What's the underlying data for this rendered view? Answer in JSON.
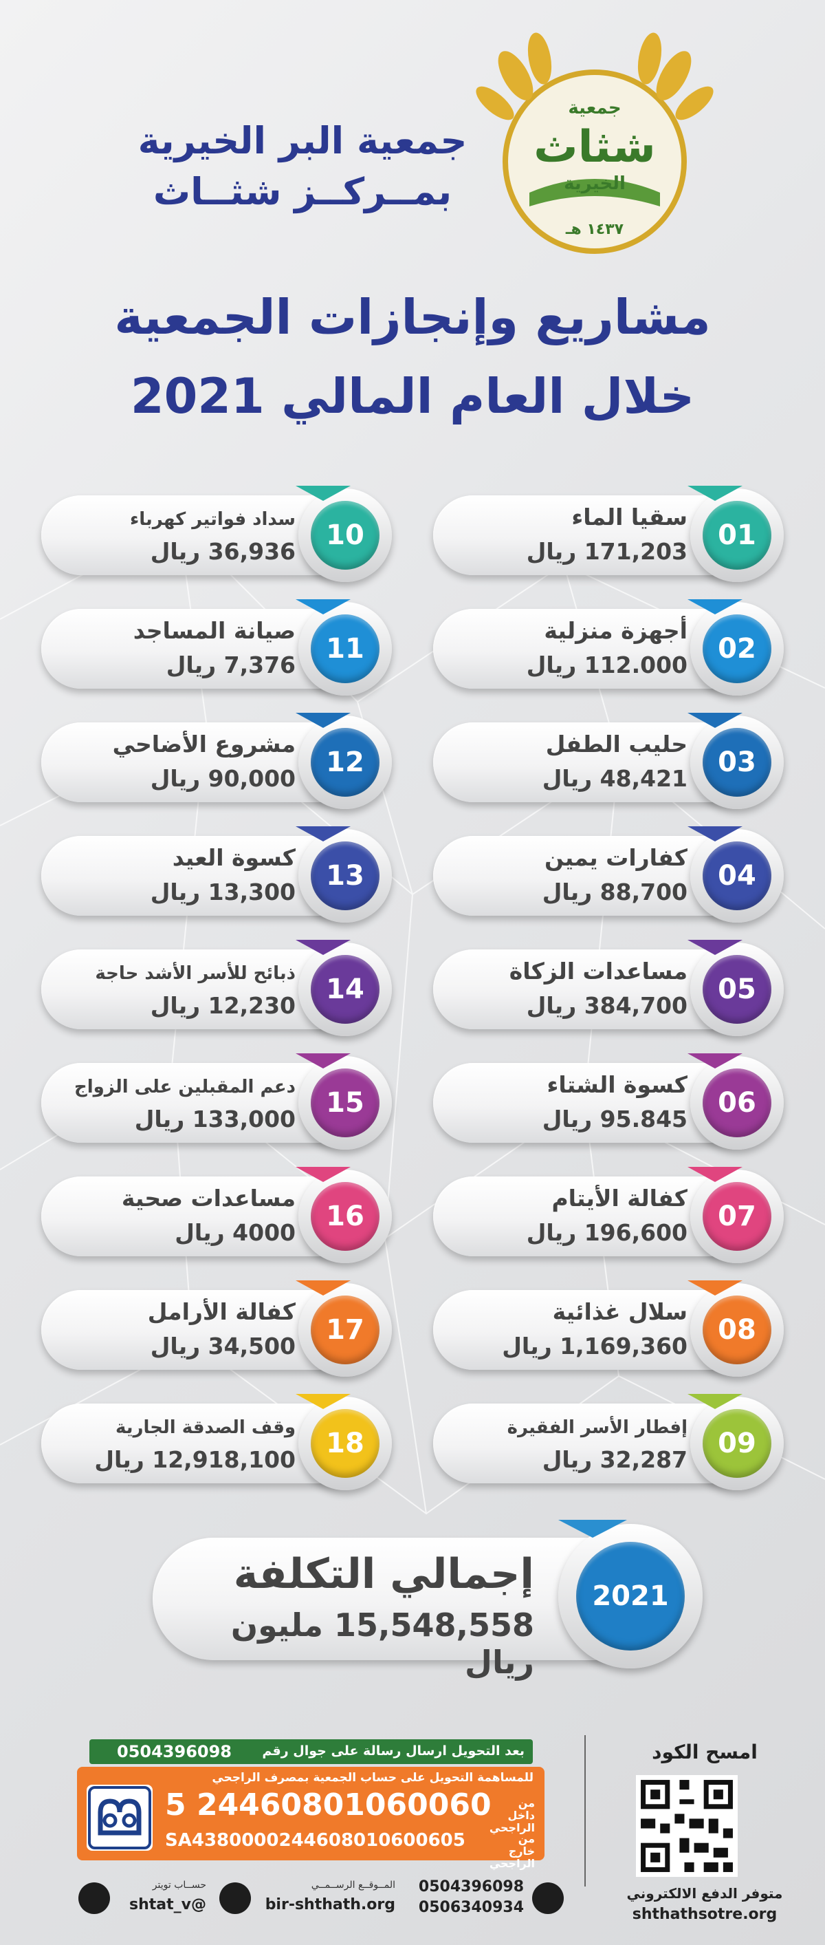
{
  "header": {
    "org_name_line1": "جمعية البر الخيرية",
    "org_name_line2": "بمــركــز شثــاث",
    "logo": {
      "text_top": "جمعية",
      "text_main": "شثاث",
      "text_bottom": "الخيرية",
      "year": "١٤٣٧ هـ"
    }
  },
  "title": {
    "line1": "مشاريع وإنجازات الجمعية",
    "line2": "خلال العام المالي 2021"
  },
  "items": [
    {
      "num": "01",
      "title": "سقيا الماء",
      "value": "171,203 ريال",
      "color": "#2bb3a0"
    },
    {
      "num": "02",
      "title": "أجهزة منزلية",
      "value": "112.000 ريال",
      "color": "#1f8fd6"
    },
    {
      "num": "03",
      "title": "حليب الطفل",
      "value": "48,421 ريال",
      "color": "#1e6fb8"
    },
    {
      "num": "04",
      "title": "كفارات يمين",
      "value": "88,700 ريال",
      "color": "#3b4fa8"
    },
    {
      "num": "05",
      "title": "مساعدات الزكاة",
      "value": "384,700 ريال",
      "color": "#6a3a9a"
    },
    {
      "num": "06",
      "title": "كسوة الشتاء",
      "value": "95.845 ريال",
      "color": "#9a3a96"
    },
    {
      "num": "07",
      "title": "كفالة الأيتام",
      "value": "196,600 ريال",
      "color": "#e0457f"
    },
    {
      "num": "08",
      "title": "سلال غذائية",
      "value": "1,169,360 ريال",
      "color": "#f07a2a"
    },
    {
      "num": "09",
      "title": "إفطار الأسر الفقيرة",
      "value": "32,287 ريال",
      "color": "#9cc43a"
    },
    {
      "num": "10",
      "title": "سداد فواتير كهرباء",
      "value": "36,936 ريال",
      "color": "#2bb3a0"
    },
    {
      "num": "11",
      "title": "صيانة المساجد",
      "value": "7,376 ريال",
      "color": "#1f8fd6"
    },
    {
      "num": "12",
      "title": "مشروع الأضاحي",
      "value": "90,000 ريال",
      "color": "#1e6fb8"
    },
    {
      "num": "13",
      "title": "كسوة العيد",
      "value": "13,300 ريال",
      "color": "#3b4fa8"
    },
    {
      "num": "14",
      "title": "ذبائح  للأسر الأشد حاجة",
      "value": "12,230 ريال",
      "color": "#6a3a9a"
    },
    {
      "num": "15",
      "title": "دعم المقبلين على الزواج",
      "value": "133,000 ريال",
      "color": "#9a3a96"
    },
    {
      "num": "16",
      "title": "مساعدات صحية",
      "value": "4000 ريال",
      "color": "#e0457f"
    },
    {
      "num": "17",
      "title": "كفالة الأرامل",
      "value": "34,500 ريال",
      "color": "#f07a2a"
    },
    {
      "num": "18",
      "title": "وقف الصدقة الجارية",
      "value": "12,918,100 ريال",
      "color": "#f2c21b"
    }
  ],
  "total": {
    "year": "2021",
    "title": "إجمالي التكلفة",
    "value": "15,548,558 مليون ريال"
  },
  "footer": {
    "qr_label": "امسح الكود",
    "pay_label": "متوفر الدفع الالكتروني",
    "store_url": "shthathsotre.org",
    "sms_text": "بعد التحويل ارسال رسالة على جوال رقم",
    "sms_number": "0504396098",
    "bank_text": "للمساهمة التحويل على حساب الجمعية بمصرف الراجحي",
    "account_label": "من داخل الراجحي",
    "account_number": "24460801060060 5",
    "iban_label": "من خارج الراجحي",
    "iban": "SA4380000244608010600605",
    "phones": [
      "0504396098",
      "0506340934"
    ],
    "website_label": "المــوقــع الرســمــي",
    "website": "bir-shthath.org",
    "twitter_label": "حســاب تويتر",
    "twitter": "@shtat_v"
  }
}
